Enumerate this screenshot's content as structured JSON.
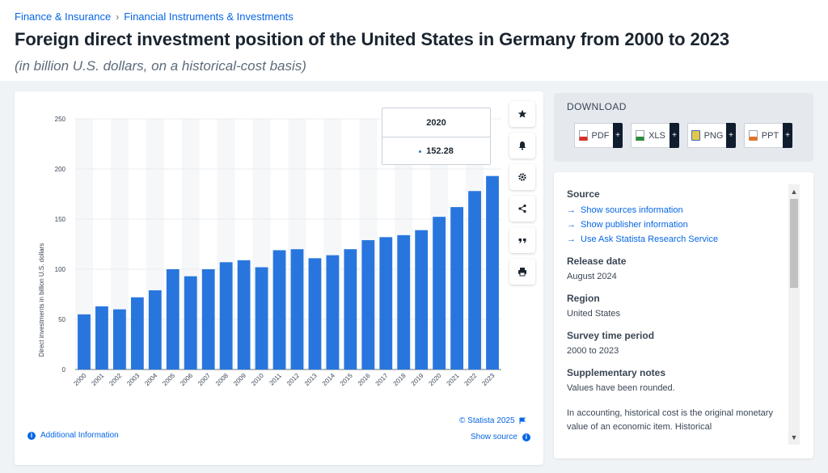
{
  "breadcrumb": {
    "item1": "Finance & Insurance",
    "separator": "›",
    "item2": "Financial Instruments & Investments"
  },
  "page": {
    "title": "Foreign direct investment position of the United States in Germany from 2000 to 2023",
    "subtitle": "(in billion U.S. dollars, on a historical-cost basis)"
  },
  "toolbar": {
    "icons": [
      "star-icon",
      "bell-icon",
      "gear-icon",
      "share-icon",
      "quote-icon",
      "print-icon"
    ]
  },
  "tooltip": {
    "year": "2020",
    "value": "152.28"
  },
  "credit": {
    "label": "© Statista 2025"
  },
  "footer": {
    "additional_info": "Additional Information",
    "show_source": "Show source"
  },
  "download": {
    "title": "DOWNLOAD",
    "formats": [
      {
        "label": "PDF",
        "color": "#d9322b"
      },
      {
        "label": "XLS",
        "color": "#2e8b3d"
      },
      {
        "label": "PNG",
        "color": "#3d6fb6"
      },
      {
        "label": "PPT",
        "color": "#e5742a"
      }
    ],
    "plus": "+"
  },
  "info": {
    "source_heading": "Source",
    "links": [
      "Show sources information",
      "Show publisher information",
      "Use Ask Statista Research Service"
    ],
    "release_heading": "Release date",
    "release_value": "August 2024",
    "region_heading": "Region",
    "region_value": "United States",
    "survey_heading": "Survey time period",
    "survey_value": "2000 to 2023",
    "notes_heading": "Supplementary notes",
    "notes_value": "Values have been rounded.",
    "notes_extra": "In accounting, historical cost is the original monetary value of an economic item. Historical"
  },
  "colors": {
    "accent": "#0666e5",
    "bar": "#2876dd",
    "band": "#f6f7f9"
  },
  "chart_data": {
    "type": "bar",
    "ylabel": "Direct investments in billion U.S. dollars",
    "ylim": [
      0,
      250
    ],
    "yticks": [
      0,
      50,
      100,
      150,
      200,
      250
    ],
    "grid": true,
    "categories": [
      "2000",
      "2001",
      "2002",
      "2003",
      "2004",
      "2005",
      "2006",
      "2007",
      "2008",
      "2009",
      "2010",
      "2011",
      "2012",
      "2013",
      "2014",
      "2015",
      "2016",
      "2017",
      "2018",
      "2019",
      "2020",
      "2021",
      "2022",
      "2023"
    ],
    "values": [
      55,
      63,
      60,
      72,
      79,
      100,
      93,
      100,
      107,
      109,
      102,
      119,
      120,
      111,
      114,
      120,
      129,
      132,
      134,
      139,
      152.28,
      162,
      178,
      193
    ]
  }
}
